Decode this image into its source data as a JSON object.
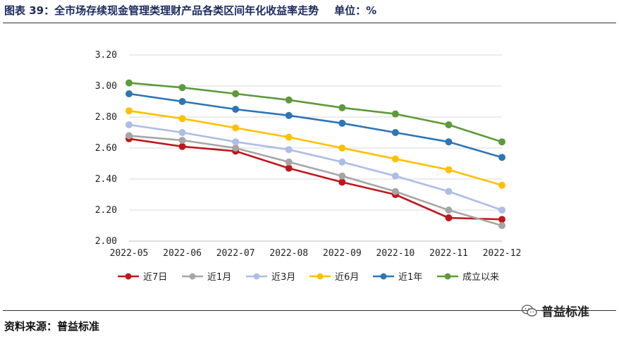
{
  "caption": {
    "title": "图表 39：全市场存续现金管理类理财产品各类区间年化收益率走势",
    "unit": "单位：%"
  },
  "source": "资料来源：普益标准",
  "watermark": {
    "text": "普益标准",
    "icon": "wechat-icon"
  },
  "chart_data": {
    "type": "line",
    "title": "图表 39：全市场存续现金管理类理财产品各类区间年化收益率走势",
    "xlabel": "",
    "ylabel": "",
    "ylim": [
      2.0,
      3.2
    ],
    "yticks": [
      "2.00",
      "2.20",
      "2.40",
      "2.60",
      "2.80",
      "3.00",
      "3.20"
    ],
    "grid": "horizontal",
    "legend_position": "bottom",
    "categories": [
      "2022-05",
      "2022-06",
      "2022-07",
      "2022-08",
      "2022-09",
      "2022-10",
      "2022-11",
      "2022-12"
    ],
    "series": [
      {
        "name": "近7日",
        "color": "#c0171d",
        "values": [
          2.66,
          2.61,
          2.58,
          2.47,
          2.38,
          2.3,
          2.15,
          2.14
        ]
      },
      {
        "name": "近1月",
        "color": "#a6a6a6",
        "values": [
          2.68,
          2.65,
          2.6,
          2.51,
          2.42,
          2.32,
          2.2,
          2.1
        ]
      },
      {
        "name": "近3月",
        "color": "#adbde6",
        "values": [
          2.75,
          2.7,
          2.64,
          2.59,
          2.51,
          2.42,
          2.32,
          2.2
        ]
      },
      {
        "name": "近6月",
        "color": "#ffc000",
        "values": [
          2.84,
          2.79,
          2.73,
          2.67,
          2.6,
          2.53,
          2.46,
          2.36
        ]
      },
      {
        "name": "近1年",
        "color": "#2e75b6",
        "values": [
          2.95,
          2.9,
          2.85,
          2.81,
          2.76,
          2.7,
          2.64,
          2.54
        ]
      },
      {
        "name": "成立以来",
        "color": "#5d9a3a",
        "values": [
          3.02,
          2.99,
          2.95,
          2.91,
          2.86,
          2.82,
          2.75,
          2.64
        ]
      }
    ]
  }
}
